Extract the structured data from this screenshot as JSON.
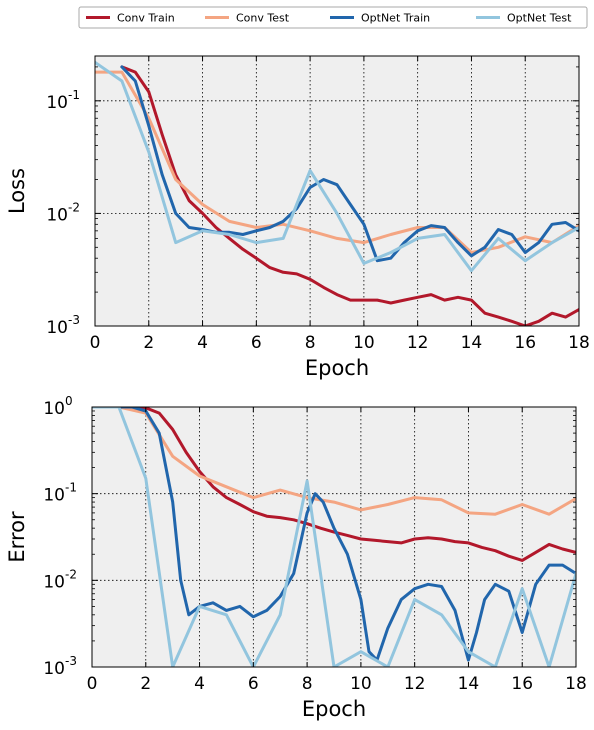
{
  "colors": {
    "conv_train": "#b2182b",
    "conv_test": "#f4a582",
    "optnet_train": "#2166ac",
    "optnet_test": "#92c5de",
    "plot_bg": "#efefef"
  },
  "legend": {
    "placement": "top",
    "entries": [
      "Conv Train",
      "Conv Test",
      "OptNet Train",
      "OptNet Test"
    ]
  },
  "chart_data": [
    {
      "type": "line",
      "xlabel": "Epoch",
      "ylabel": "Loss",
      "xlim": [
        0,
        18
      ],
      "ylim": [
        0.001,
        0.25
      ],
      "yscale": "log",
      "grid": true,
      "x_ticks": [
        0,
        2,
        4,
        6,
        8,
        10,
        12,
        14,
        16,
        18
      ],
      "y_ticks": [
        {
          "value": 0.001,
          "base": "10",
          "exp": "-3"
        },
        {
          "value": 0.01,
          "base": "10",
          "exp": "-2"
        },
        {
          "value": 0.1,
          "base": "10",
          "exp": "-1"
        }
      ],
      "series": [
        {
          "name": "Conv Train",
          "x": [
            1,
            1.5,
            2,
            2.5,
            3,
            3.5,
            4,
            4.5,
            5,
            5.5,
            6,
            6.5,
            7,
            7.5,
            8,
            8.5,
            9,
            9.5,
            10,
            10.5,
            11,
            11.5,
            12,
            12.5,
            13,
            13.5,
            14,
            14.5,
            15,
            15.5,
            16,
            16.5,
            17,
            17.5,
            18
          ],
          "y": [
            0.2,
            0.18,
            0.12,
            0.05,
            0.022,
            0.013,
            0.01,
            0.0075,
            0.006,
            0.0048,
            0.004,
            0.0033,
            0.003,
            0.0029,
            0.0026,
            0.0022,
            0.0019,
            0.0017,
            0.0017,
            0.0017,
            0.0016,
            0.0017,
            0.0018,
            0.0019,
            0.0017,
            0.0018,
            0.0017,
            0.0013,
            0.0012,
            0.0011,
            0.001,
            0.0011,
            0.0013,
            0.0012,
            0.0014
          ]
        },
        {
          "name": "Conv Test",
          "x": [
            0,
            1,
            2,
            3,
            4,
            5,
            6,
            7,
            8,
            9,
            10,
            11,
            12,
            13,
            14,
            15,
            16,
            17,
            18
          ],
          "y": [
            0.18,
            0.18,
            0.07,
            0.02,
            0.012,
            0.0085,
            0.0075,
            0.008,
            0.007,
            0.006,
            0.0055,
            0.0065,
            0.0075,
            0.0075,
            0.0045,
            0.005,
            0.0062,
            0.0055,
            0.0078
          ]
        },
        {
          "name": "OptNet Train",
          "x": [
            1,
            1.5,
            2,
            2.5,
            3,
            3.5,
            4,
            4.5,
            5,
            5.5,
            6,
            6.5,
            7,
            7.5,
            8,
            8.5,
            9,
            9.5,
            10,
            10.5,
            11,
            11.5,
            12,
            12.5,
            13,
            13.5,
            14,
            14.5,
            15,
            15.5,
            16,
            16.5,
            17,
            17.5,
            18
          ],
          "y": [
            0.2,
            0.15,
            0.06,
            0.022,
            0.01,
            0.0075,
            0.0072,
            0.0068,
            0.0068,
            0.0065,
            0.007,
            0.0075,
            0.0085,
            0.011,
            0.017,
            0.02,
            0.018,
            0.012,
            0.008,
            0.0038,
            0.004,
            0.0055,
            0.007,
            0.0078,
            0.0075,
            0.0055,
            0.0042,
            0.005,
            0.0072,
            0.0065,
            0.0045,
            0.0055,
            0.008,
            0.0083,
            0.007
          ]
        },
        {
          "name": "OptNet Test",
          "x": [
            0,
            1,
            2,
            3,
            4,
            5,
            6,
            7,
            8,
            9,
            10,
            11,
            12,
            13,
            14,
            15,
            16,
            17,
            18
          ],
          "y": [
            0.22,
            0.15,
            0.035,
            0.0055,
            0.007,
            0.0065,
            0.0055,
            0.006,
            0.024,
            0.01,
            0.0036,
            0.0045,
            0.006,
            0.0065,
            0.0031,
            0.006,
            0.0038,
            0.0055,
            0.0075
          ]
        }
      ]
    },
    {
      "type": "line",
      "xlabel": "Epoch",
      "ylabel": "Error",
      "xlim": [
        0,
        18
      ],
      "ylim": [
        0.001,
        1
      ],
      "yscale": "log",
      "grid": true,
      "x_ticks": [
        0,
        2,
        4,
        6,
        8,
        10,
        12,
        14,
        16,
        18
      ],
      "y_ticks": [
        {
          "value": 0.001,
          "base": "10",
          "exp": "-3"
        },
        {
          "value": 0.01,
          "base": "10",
          "exp": "-2"
        },
        {
          "value": 0.1,
          "base": "10",
          "exp": "-1"
        },
        {
          "value": 1,
          "base": "10",
          "exp": "0"
        }
      ],
      "series": [
        {
          "name": "Conv Train",
          "x": [
            1,
            1.5,
            2,
            2.5,
            3,
            3.5,
            4,
            4.5,
            5,
            5.5,
            6,
            6.5,
            7,
            7.5,
            8,
            8.5,
            9,
            9.5,
            10,
            10.5,
            11,
            11.5,
            12,
            12.5,
            13,
            13.5,
            14,
            14.5,
            15,
            15.5,
            16,
            16.5,
            17,
            17.5,
            18
          ],
          "y": [
            1,
            1,
            0.98,
            0.85,
            0.55,
            0.3,
            0.18,
            0.12,
            0.09,
            0.075,
            0.062,
            0.055,
            0.053,
            0.05,
            0.045,
            0.04,
            0.036,
            0.033,
            0.03,
            0.029,
            0.028,
            0.027,
            0.03,
            0.031,
            0.03,
            0.028,
            0.027,
            0.024,
            0.022,
            0.019,
            0.017,
            0.021,
            0.026,
            0.023,
            0.021
          ]
        },
        {
          "name": "Conv Test",
          "x": [
            0,
            1,
            2,
            3,
            4,
            5,
            6,
            7,
            8,
            9,
            10,
            11,
            12,
            13,
            14,
            15,
            16,
            17,
            18
          ],
          "y": [
            1,
            1,
            0.85,
            0.27,
            0.16,
            0.12,
            0.09,
            0.11,
            0.09,
            0.08,
            0.065,
            0.075,
            0.09,
            0.085,
            0.06,
            0.058,
            0.075,
            0.058,
            0.088
          ]
        },
        {
          "name": "OptNet Train",
          "x": [
            1,
            1.5,
            2,
            2.5,
            3,
            3.3,
            3.6,
            4,
            4.5,
            5,
            5.5,
            6,
            6.5,
            7,
            7.5,
            8,
            8.3,
            8.6,
            9,
            9.5,
            10,
            10.3,
            10.6,
            11,
            11.5,
            12,
            12.5,
            13,
            13.5,
            14,
            14.3,
            14.6,
            15,
            15.5,
            16,
            16.5,
            17,
            17.5,
            18
          ],
          "y": [
            1,
            1,
            0.9,
            0.5,
            0.08,
            0.01,
            0.004,
            0.005,
            0.0055,
            0.0045,
            0.005,
            0.0038,
            0.0045,
            0.0065,
            0.012,
            0.06,
            0.1,
            0.08,
            0.04,
            0.02,
            0.006,
            0.0015,
            0.0012,
            0.0028,
            0.006,
            0.008,
            0.009,
            0.0085,
            0.0045,
            0.0012,
            0.0025,
            0.006,
            0.009,
            0.0075,
            0.0025,
            0.009,
            0.015,
            0.015,
            0.012
          ]
        },
        {
          "name": "OptNet Test",
          "x": [
            0,
            1,
            2,
            3,
            4,
            5,
            6,
            7,
            8,
            9,
            10,
            11,
            12,
            13,
            14,
            15,
            16,
            17,
            18
          ],
          "y": [
            1,
            1,
            0.15,
            0.001,
            0.005,
            0.004,
            0.001,
            0.004,
            0.14,
            0.001,
            0.0015,
            0.001,
            0.006,
            0.004,
            0.0015,
            0.001,
            0.008,
            0.001,
            0.012
          ]
        }
      ]
    }
  ]
}
